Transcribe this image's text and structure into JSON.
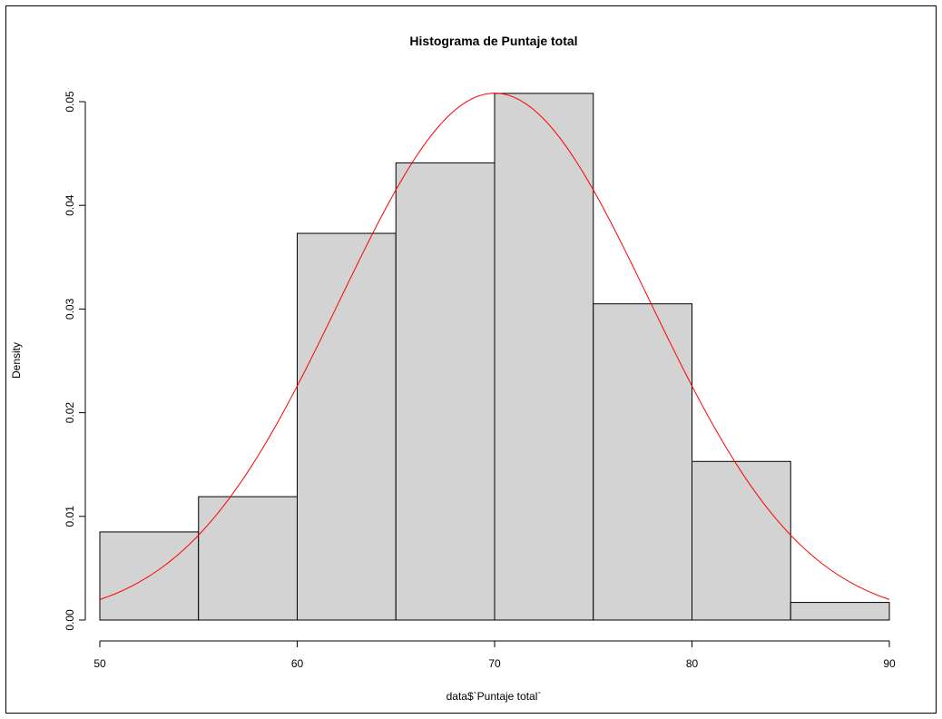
{
  "chart_data": {
    "type": "bar",
    "title": "Histograma de Puntaje total",
    "xlabel": "data$`Puntaje total`",
    "ylabel": "Density",
    "xlim": [
      50,
      90
    ],
    "ylim": [
      0,
      0.05
    ],
    "bins": [
      {
        "x0": 50,
        "x1": 55,
        "density": 0.0085
      },
      {
        "x0": 55,
        "x1": 60,
        "density": 0.0119
      },
      {
        "x0": 60,
        "x1": 65,
        "density": 0.0373
      },
      {
        "x0": 65,
        "x1": 70,
        "density": 0.0441
      },
      {
        "x0": 70,
        "x1": 75,
        "density": 0.0508
      },
      {
        "x0": 75,
        "x1": 80,
        "density": 0.0305
      },
      {
        "x0": 80,
        "x1": 85,
        "density": 0.0153
      },
      {
        "x0": 85,
        "x1": 90,
        "density": 0.0017
      }
    ],
    "x_ticks": [
      "50",
      "60",
      "70",
      "80",
      "90"
    ],
    "y_ticks": [
      "0.00",
      "0.01",
      "0.02",
      "0.03",
      "0.04",
      "0.05"
    ],
    "normal_curve": {
      "mean": 70,
      "sd": 7.85,
      "color": "#ff0000"
    },
    "bar_fill": "#d3d3d3",
    "bar_stroke": "#000000",
    "grid": false
  }
}
